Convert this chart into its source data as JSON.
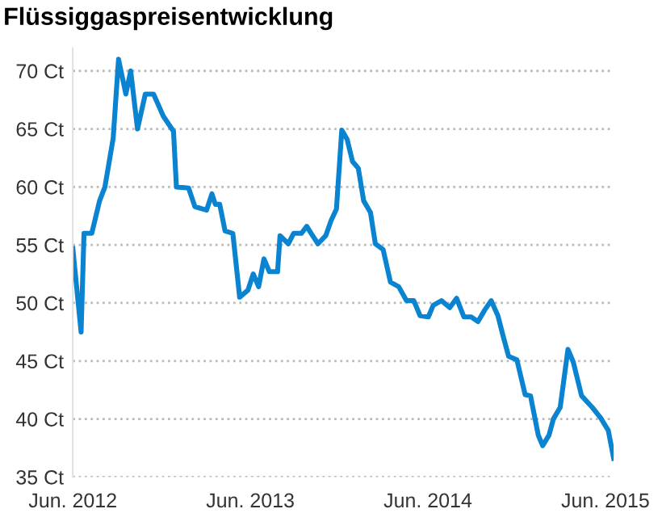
{
  "chart_data": {
    "type": "line",
    "title": "Flüssiggaspreisentwicklung",
    "x": [
      "2012-06-15",
      "2012-07-02",
      "2012-07-08",
      "2012-07-24",
      "2012-08-09",
      "2012-08-20",
      "2012-09-06",
      "2012-09-17",
      "2012-10-02",
      "2012-10-12",
      "2012-10-26",
      "2012-11-11",
      "2012-11-28",
      "2012-12-18",
      "2013-01-08",
      "2013-01-14",
      "2013-02-08",
      "2013-02-21",
      "2013-03-17",
      "2013-03-28",
      "2013-04-04",
      "2013-04-13",
      "2013-04-24",
      "2013-05-10",
      "2013-05-24",
      "2013-06-10",
      "2013-06-21",
      "2013-07-02",
      "2013-07-13",
      "2013-07-24",
      "2013-08-10",
      "2013-08-15",
      "2013-09-01",
      "2013-09-12",
      "2013-09-28",
      "2013-10-09",
      "2013-10-18",
      "2013-11-01",
      "2013-11-17",
      "2013-11-28",
      "2013-12-09",
      "2013-12-20",
      "2013-12-31",
      "2014-01-11",
      "2014-01-23",
      "2014-02-03",
      "2014-02-17",
      "2014-02-27",
      "2014-03-15",
      "2014-03-30",
      "2014-04-16",
      "2014-05-02",
      "2014-05-17",
      "2014-05-30",
      "2014-06-16",
      "2014-06-26",
      "2014-07-13",
      "2014-07-30",
      "2014-08-13",
      "2014-08-28",
      "2014-09-12",
      "2014-09-26",
      "2014-10-10",
      "2014-10-23",
      "2014-11-06",
      "2014-11-17",
      "2014-11-28",
      "2014-12-15",
      "2015-01-01",
      "2015-01-12",
      "2015-01-28",
      "2015-02-06",
      "2015-02-19",
      "2015-02-28",
      "2015-03-14",
      "2015-03-30",
      "2015-04-10",
      "2015-04-27",
      "2015-05-19",
      "2015-06-05",
      "2015-06-21",
      "2015-07-02"
    ],
    "series": [
      {
        "color": "#0a84d0",
        "values": [
          54.7,
          47.5,
          56,
          56,
          58.8,
          60,
          64.2,
          71,
          68,
          70,
          65,
          68,
          68,
          66.1,
          64.8,
          60,
          59.9,
          58.3,
          58.0,
          59.4,
          58.5,
          58.5,
          56.2,
          56,
          50.5,
          51.1,
          52.5,
          51.4,
          53.8,
          52.7,
          52.7,
          55.8,
          55.1,
          56,
          56,
          56.6,
          56,
          55.1,
          55.8,
          57.1,
          58.1,
          64.9,
          64.1,
          62.2,
          61.6,
          58.8,
          57.8,
          55.1,
          54.6,
          51.8,
          51.4,
          50.2,
          50.2,
          48.9,
          48.8,
          49.8,
          50.2,
          49.6,
          50.4,
          48.8,
          48.8,
          48.4,
          49.4,
          50.2,
          48.9,
          47.1,
          45.4,
          45.1,
          42.1,
          42.0,
          38.6,
          37.7,
          38.6,
          40,
          41,
          46,
          44.9,
          42,
          41,
          40.1,
          39,
          36.6
        ]
      }
    ],
    "xlim": [
      "2012-06-15",
      "2015-07-02"
    ],
    "xticks": [
      {
        "value": "2012-06-15",
        "label": "Jun. 2012"
      },
      {
        "value": "2013-06-15",
        "label": "Jun. 2013"
      },
      {
        "value": "2014-06-15",
        "label": "Jun. 2014"
      },
      {
        "value": "2015-06-15",
        "label": "Jun. 2015"
      }
    ],
    "ylim": [
      35,
      72
    ],
    "yticks": [
      {
        "value": 35,
        "label": "35 Ct"
      },
      {
        "value": 40,
        "label": "40 Ct"
      },
      {
        "value": 45,
        "label": "45 Ct"
      },
      {
        "value": 50,
        "label": "50 Ct"
      },
      {
        "value": 55,
        "label": "55 Ct"
      },
      {
        "value": 60,
        "label": "60 Ct"
      },
      {
        "value": 65,
        "label": "65 Ct"
      },
      {
        "value": 70,
        "label": "70 Ct"
      }
    ],
    "grid": "y",
    "marker": "none",
    "line_style": "solid"
  }
}
